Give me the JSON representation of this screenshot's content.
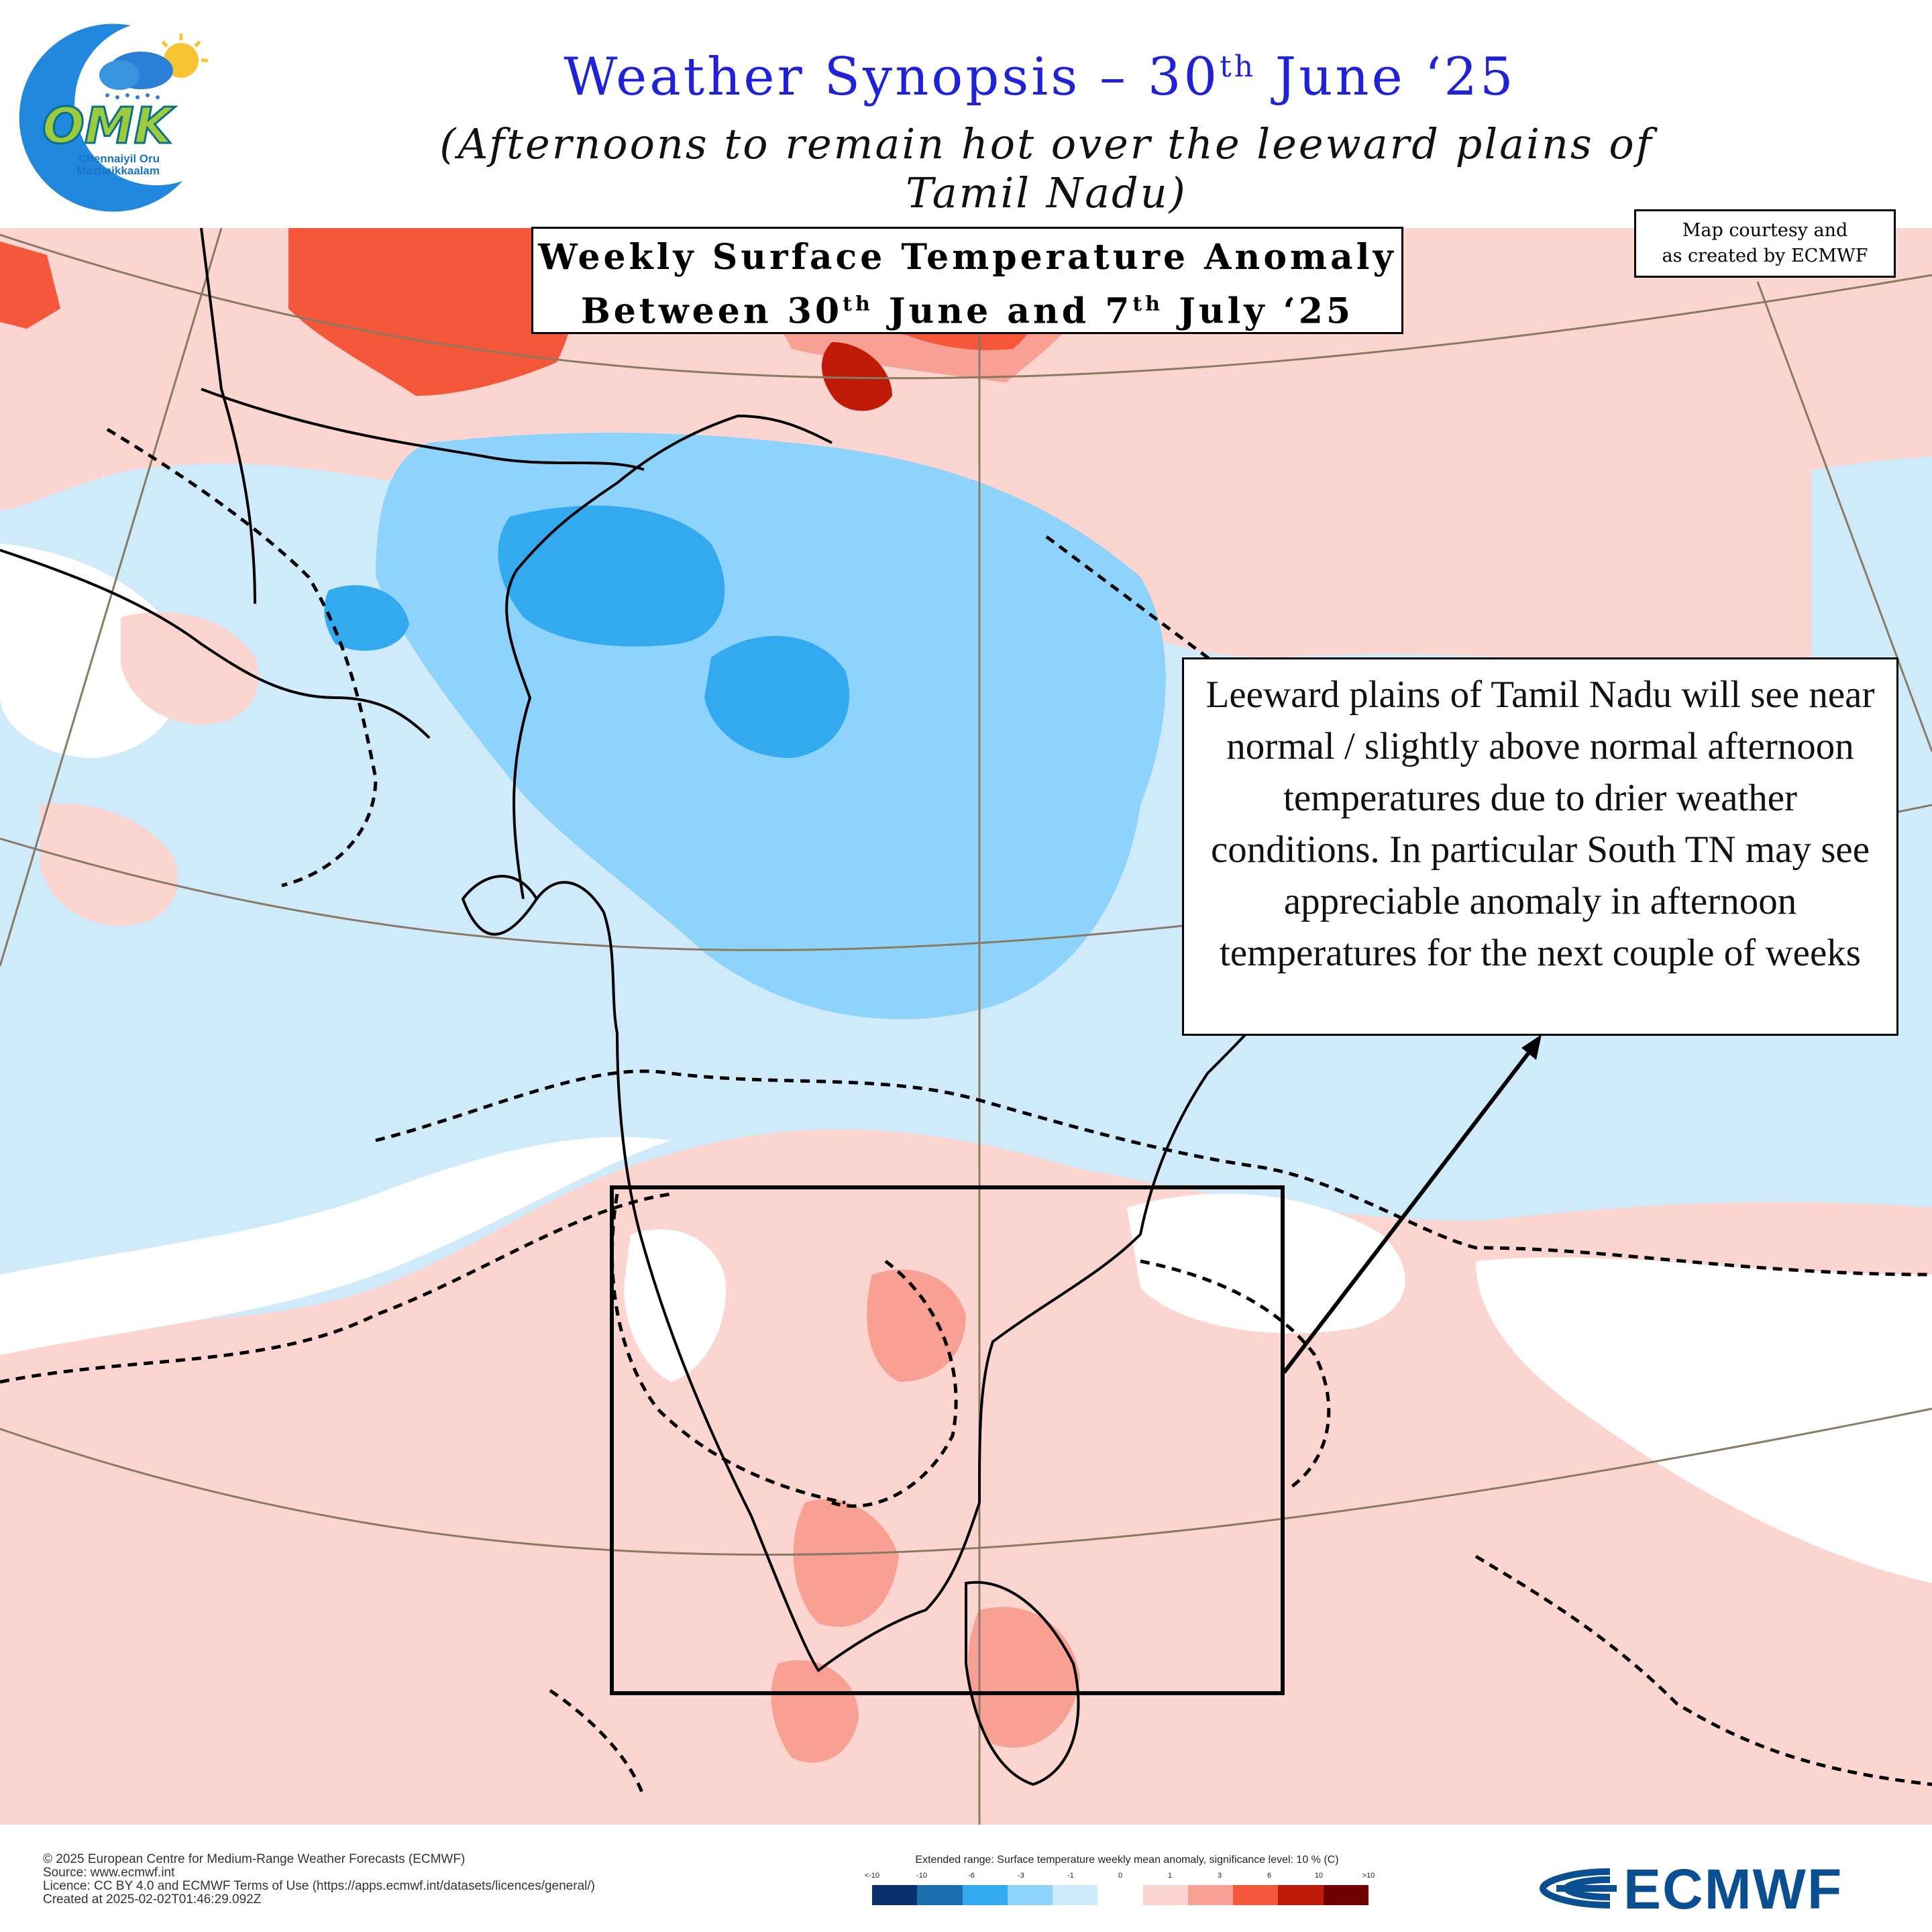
{
  "header": {
    "title_main": "Weather Synopsis – 30",
    "title_sup": "th",
    "title_tail": " June ‘25",
    "subtitle": "(Afternoons to remain hot over the leeward plains of  Tamil Nadu)"
  },
  "logo": {
    "brand": "OMK",
    "line1": "Chennaiyil Oru",
    "line2": "Mazhaikkaalam"
  },
  "map_box": {
    "line1": "Weekly Surface Temperature Anomaly",
    "line2_a": "Between 30",
    "line2_sup1": "th",
    "line2_b": " June and 7",
    "line2_sup2": "th",
    "line2_c": " July ‘25"
  },
  "courtesy": {
    "line1": "Map courtesy and",
    "line2": "as created by ECMWF"
  },
  "callout": {
    "text": "Leeward plains of Tamil Nadu will see near normal / slightly above normal afternoon temperatures due to drier weather conditions. In particular South TN may see appreciable anomaly in afternoon temperatures for the next couple of weeks"
  },
  "footer": {
    "line1": "© 2025 European Centre for Medium-Range Weather Forecasts (ECMWF)",
    "line2": "Source: www.ecmwf.int",
    "line3": "Licence: CC BY 4.0 and ECMWF Terms of Use (https://apps.ecmwf.int/datasets/licences/general/)",
    "line4": "Created at 2025-02-02T01:46:29.092Z"
  },
  "legend": {
    "title": "Extended range: Surface temperature weekly mean anomaly, significance level: 10 % (C)",
    "ticks": [
      "<-10",
      "-10",
      "-6",
      "-3",
      "-1",
      "0",
      "1",
      "3",
      "6",
      "10",
      ">10"
    ],
    "colors": [
      "#08306b",
      "#1a6fb0",
      "#33a9f0",
      "#8ed3fb",
      "#cfeafb",
      "#ffffff",
      "#fdd5d0",
      "#f7a093",
      "#f5573a",
      "#c01a08",
      "#6e0000"
    ]
  },
  "brand": {
    "ecmwf": "ECMWF",
    "accent": "#0a4f92"
  },
  "colors": {
    "title_blue": "#1f22d6",
    "sea_light_blue": "#cfeafb",
    "sea_mid_blue": "#8ed3fb",
    "sea_deep_blue": "#33a9f0",
    "warm_light": "#fdd5d0",
    "warm_mid": "#f7a093",
    "warm_strong": "#f5573a",
    "warm_darkest": "#c01a08"
  }
}
